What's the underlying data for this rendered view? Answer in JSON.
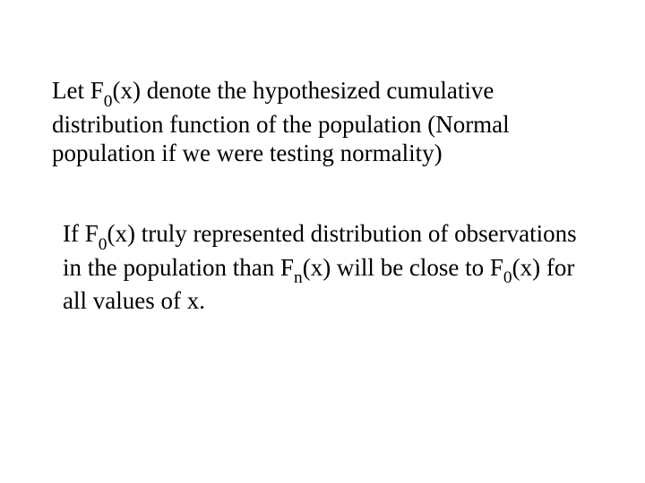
{
  "slide": {
    "background_color": "#ffffff",
    "text_color": "#000000",
    "font_family": "Times New Roman",
    "base_fontsize": 27,
    "paragraph1": {
      "parts": {
        "t1": "Let F",
        "sub1": "0",
        "t2": "(x) denote the hypothesized cumulative distribution function of the population (Normal population if we were testing normality)"
      }
    },
    "paragraph2": {
      "parts": {
        "t1": "If F",
        "sub1": "0",
        "t2": "(x) truly represented distribution of observations in the population than F",
        "sub2": "n",
        "t3": "(x) will be close to F",
        "sub3": "0",
        "t4": "(x) for all values of x."
      }
    }
  }
}
